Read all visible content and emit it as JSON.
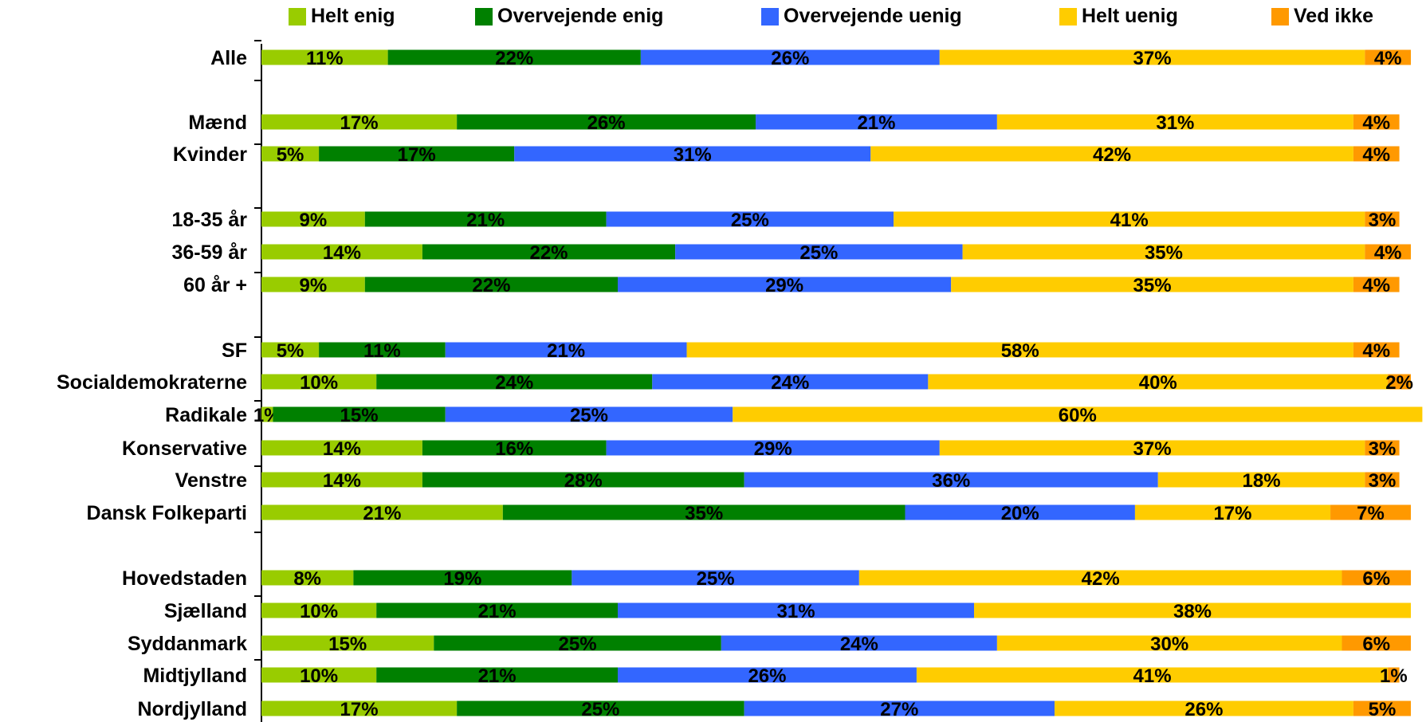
{
  "chart_data": {
    "type": "bar",
    "orientation": "horizontal",
    "stacked": true,
    "categories": [
      "Alle",
      "Mænd",
      "Kvinder",
      "18-35 år",
      "36-59 år",
      "60 år +",
      "SF",
      "Socialdemokraterne",
      "Radikale",
      "Konservative",
      "Venstre",
      "Dansk Folkeparti",
      "Hovedstaden",
      "Sjælland",
      "Syddanmark",
      "Midtjylland",
      "Nordjylland"
    ],
    "series": [
      {
        "name": "Helt enig",
        "color": "#99cc00",
        "values": [
          11,
          17,
          5,
          9,
          14,
          9,
          5,
          10,
          1,
          14,
          14,
          21,
          8,
          10,
          15,
          10,
          17
        ]
      },
      {
        "name": "Overvejende enig",
        "color": "#008000",
        "values": [
          22,
          26,
          17,
          21,
          22,
          22,
          11,
          24,
          15,
          16,
          28,
          35,
          19,
          21,
          25,
          21,
          25
        ]
      },
      {
        "name": "Overvejende uenig",
        "color": "#3366ff",
        "values": [
          26,
          21,
          31,
          25,
          25,
          29,
          21,
          24,
          25,
          29,
          36,
          20,
          25,
          31,
          24,
          26,
          27
        ]
      },
      {
        "name": "Helt uenig",
        "color": "#ffcc00",
        "values": [
          37,
          31,
          42,
          41,
          35,
          35,
          58,
          40,
          60,
          37,
          18,
          17,
          42,
          38,
          30,
          41,
          26
        ]
      },
      {
        "name": "Ved ikke",
        "color": "#ff9900",
        "values": [
          4,
          4,
          4,
          3,
          4,
          4,
          4,
          2,
          null,
          3,
          3,
          7,
          6,
          null,
          6,
          1,
          5
        ]
      }
    ],
    "value_suffix": "%",
    "xlim": [
      0,
      100
    ],
    "legend_position": "top",
    "grid": false
  }
}
